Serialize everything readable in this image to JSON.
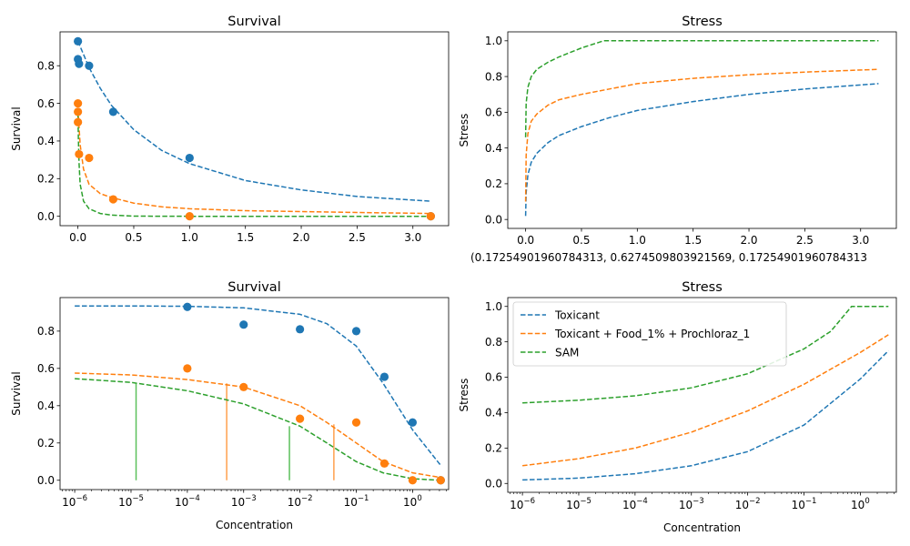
{
  "colors": {
    "blue": "#1f77b4",
    "orange": "#ff7f0e",
    "green": "#2ca02c",
    "green_vline": "#5cc05c",
    "orange_vline": "#ffa04d"
  },
  "stray_label": "(0.17254901960784313, 0.6274509803921569, 0.17254901960784313",
  "chart_data": [
    {
      "id": "survival-linear",
      "type": "scatter",
      "title": "Survival",
      "xlabel": "",
      "ylabel": "Survival",
      "xscale": "linear",
      "xlim": [
        -0.16,
        3.32
      ],
      "ylim": [
        -0.05,
        0.98
      ],
      "xticks": [
        0,
        0.5,
        1,
        1.5,
        2,
        2.5,
        3
      ],
      "xtick_labels": [
        "0.0",
        "0.5",
        "1.0",
        "1.5",
        "2.0",
        "2.5",
        "3.0"
      ],
      "yticks": [
        0,
        0.2,
        0.4,
        0.6,
        0.8
      ],
      "ytick_labels": [
        "0.0",
        "0.2",
        "0.4",
        "0.6",
        "0.8"
      ],
      "series": [
        {
          "color": "#1f77b4",
          "style": "dashed",
          "x": [
            0,
            0.05,
            0.1,
            0.2,
            0.3,
            0.5,
            0.75,
            1.0,
            1.5,
            2.0,
            2.5,
            3.16
          ],
          "y": [
            0.93,
            0.86,
            0.79,
            0.68,
            0.59,
            0.46,
            0.35,
            0.28,
            0.19,
            0.14,
            0.105,
            0.08
          ]
        },
        {
          "color": "#ff7f0e",
          "style": "dashed",
          "x": [
            0,
            0.02,
            0.05,
            0.1,
            0.2,
            0.3,
            0.5,
            0.75,
            1.0,
            1.5,
            2.0,
            2.5,
            3.16
          ],
          "y": [
            0.57,
            0.38,
            0.25,
            0.17,
            0.12,
            0.1,
            0.07,
            0.05,
            0.04,
            0.03,
            0.025,
            0.02,
            0.015
          ]
        },
        {
          "color": "#2ca02c",
          "style": "dashed",
          "x": [
            0,
            0.005,
            0.01,
            0.02,
            0.05,
            0.1,
            0.2,
            0.3,
            0.5,
            1.0,
            3.16
          ],
          "y": [
            0.55,
            0.4,
            0.28,
            0.17,
            0.08,
            0.04,
            0.015,
            0.006,
            0.001,
            0,
            0
          ]
        },
        {
          "color": "#1f77b4",
          "style": "points",
          "x": [
            0,
            0,
            0.01,
            0.1,
            0.316,
            1.0,
            3.16
          ],
          "y": [
            0.93,
            0.835,
            0.81,
            0.8,
            0.555,
            0.31,
            0
          ]
        },
        {
          "color": "#ff7f0e",
          "style": "points",
          "x": [
            0,
            0,
            0,
            0.01,
            0.1,
            0.316,
            1.0,
            3.16
          ],
          "y": [
            0.6,
            0.555,
            0.5,
            0.33,
            0.31,
            0.09,
            0,
            0
          ]
        }
      ]
    },
    {
      "id": "stress-linear",
      "type": "line",
      "title": "Stress",
      "xlabel": "",
      "ylabel": "Stress",
      "xscale": "linear",
      "xlim": [
        -0.16,
        3.32
      ],
      "ylim": [
        -0.05,
        1.05
      ],
      "xticks": [
        0,
        0.5,
        1,
        1.5,
        2,
        2.5,
        3
      ],
      "xtick_labels": [
        "0.0",
        "0.5",
        "1.0",
        "1.5",
        "2.0",
        "2.5",
        "3.0"
      ],
      "yticks": [
        0,
        0.2,
        0.4,
        0.6,
        0.8,
        1.0
      ],
      "ytick_labels": [
        "0.0",
        "0.2",
        "0.4",
        "0.6",
        "0.8",
        "1.0"
      ],
      "series": [
        {
          "color": "#1f77b4",
          "style": "dashed",
          "x": [
            0,
            0.005,
            0.02,
            0.05,
            0.1,
            0.2,
            0.3,
            0.5,
            0.75,
            1.0,
            1.5,
            2.0,
            2.5,
            3.16
          ],
          "y": [
            0.02,
            0.15,
            0.25,
            0.32,
            0.37,
            0.43,
            0.47,
            0.52,
            0.57,
            0.61,
            0.66,
            0.7,
            0.73,
            0.76
          ]
        },
        {
          "color": "#ff7f0e",
          "style": "dashed",
          "x": [
            0,
            0.005,
            0.02,
            0.05,
            0.1,
            0.2,
            0.3,
            0.5,
            0.75,
            1.0,
            1.5,
            2.0,
            2.5,
            3.16
          ],
          "y": [
            0.1,
            0.36,
            0.48,
            0.55,
            0.59,
            0.64,
            0.67,
            0.7,
            0.73,
            0.76,
            0.79,
            0.81,
            0.825,
            0.84
          ]
        },
        {
          "color": "#2ca02c",
          "style": "dashed",
          "x": [
            0,
            0.005,
            0.02,
            0.05,
            0.1,
            0.2,
            0.3,
            0.5,
            0.7,
            1.0,
            1.5,
            2.0,
            2.5,
            3.16
          ],
          "y": [
            0.46,
            0.65,
            0.74,
            0.8,
            0.84,
            0.88,
            0.91,
            0.96,
            1.0,
            1.0,
            1.0,
            1.0,
            1.0,
            1.0
          ]
        }
      ]
    },
    {
      "id": "survival-log",
      "type": "scatter",
      "title": "Survival",
      "xlabel": "Concentration",
      "ylabel": "Survival",
      "xscale": "log",
      "xlim_log10": [
        -6.26,
        0.64
      ],
      "ylim": [
        -0.05,
        0.98
      ],
      "xtick_exponents": [
        -6,
        -5,
        -4,
        -3,
        -2,
        -1,
        0
      ],
      "yticks": [
        0,
        0.2,
        0.4,
        0.6,
        0.8
      ],
      "ytick_labels": [
        "0.0",
        "0.2",
        "0.4",
        "0.6",
        "0.8"
      ],
      "series": [
        {
          "color": "#1f77b4",
          "style": "dashed",
          "x": [
            1e-06,
            1e-05,
            0.0001,
            0.001,
            0.01,
            0.03,
            0.1,
            0.3,
            1.0,
            3.16
          ],
          "y": [
            0.935,
            0.935,
            0.933,
            0.925,
            0.89,
            0.84,
            0.72,
            0.52,
            0.27,
            0.08
          ]
        },
        {
          "color": "#ff7f0e",
          "style": "dashed",
          "x": [
            1e-06,
            1e-05,
            0.0001,
            0.001,
            0.01,
            0.03,
            0.1,
            0.3,
            1.0,
            3.16
          ],
          "y": [
            0.575,
            0.565,
            0.54,
            0.5,
            0.4,
            0.31,
            0.2,
            0.1,
            0.04,
            0.015
          ]
        },
        {
          "color": "#2ca02c",
          "style": "dashed",
          "x": [
            1e-06,
            1e-05,
            0.0001,
            0.001,
            0.01,
            0.03,
            0.1,
            0.3,
            1.0,
            3.16
          ],
          "y": [
            0.545,
            0.525,
            0.48,
            0.41,
            0.29,
            0.2,
            0.1,
            0.04,
            0.008,
            0
          ]
        },
        {
          "color": "#1f77b4",
          "style": "points",
          "x": [
            0.0001,
            0.001,
            0.01,
            0.1,
            0.316,
            1.0,
            3.16
          ],
          "y": [
            0.93,
            0.835,
            0.81,
            0.8,
            0.555,
            0.31,
            0
          ]
        },
        {
          "color": "#ff7f0e",
          "style": "points",
          "x": [
            0.0001,
            0.001,
            0.01,
            0.1,
            0.316,
            1.0,
            3.16
          ],
          "y": [
            0.6,
            0.5,
            0.33,
            0.31,
            0.09,
            0,
            0
          ]
        }
      ],
      "vlines": [
        {
          "color": "#5cc05c",
          "x": 1.23e-05,
          "y": 0.52
        },
        {
          "color": "#ffa04d",
          "x": 0.0005,
          "y": 0.52
        },
        {
          "color": "#5cc05c",
          "x": 0.0065,
          "y": 0.29
        },
        {
          "color": "#ffa04d",
          "x": 0.04,
          "y": 0.3
        }
      ]
    },
    {
      "id": "stress-log",
      "type": "line",
      "title": "Stress",
      "xlabel": "Concentration",
      "ylabel": "Stress",
      "xscale": "log",
      "xlim_log10": [
        -6.26,
        0.64
      ],
      "ylim": [
        -0.05,
        1.05
      ],
      "xtick_exponents": [
        -6,
        -5,
        -4,
        -3,
        -2,
        -1,
        0
      ],
      "yticks": [
        0,
        0.2,
        0.4,
        0.6,
        0.8,
        1.0
      ],
      "ytick_labels": [
        "0.0",
        "0.2",
        "0.4",
        "0.6",
        "0.8",
        "1.0"
      ],
      "legend": {
        "position": "upper-left",
        "entries": [
          "Toxicant",
          "Toxicant + Food_1% + Prochloraz_1",
          "SAM"
        ]
      },
      "series": [
        {
          "name": "Toxicant",
          "color": "#1f77b4",
          "style": "dashed",
          "x": [
            1e-06,
            1e-05,
            0.0001,
            0.001,
            0.01,
            0.1,
            1.0,
            3.16
          ],
          "y": [
            0.02,
            0.03,
            0.055,
            0.1,
            0.18,
            0.33,
            0.59,
            0.75
          ]
        },
        {
          "name": "Toxicant + Food_1% + Prochloraz_1",
          "color": "#ff7f0e",
          "style": "dashed",
          "x": [
            1e-06,
            1e-05,
            0.0001,
            0.001,
            0.01,
            0.1,
            1.0,
            3.16
          ],
          "y": [
            0.1,
            0.14,
            0.2,
            0.29,
            0.41,
            0.56,
            0.74,
            0.84
          ]
        },
        {
          "name": "SAM",
          "color": "#2ca02c",
          "style": "dashed",
          "x": [
            1e-06,
            1e-05,
            0.0001,
            0.001,
            0.01,
            0.1,
            0.3,
            0.7,
            3.16
          ],
          "y": [
            0.455,
            0.47,
            0.495,
            0.54,
            0.62,
            0.76,
            0.86,
            1.0,
            1.0
          ]
        }
      ]
    }
  ]
}
